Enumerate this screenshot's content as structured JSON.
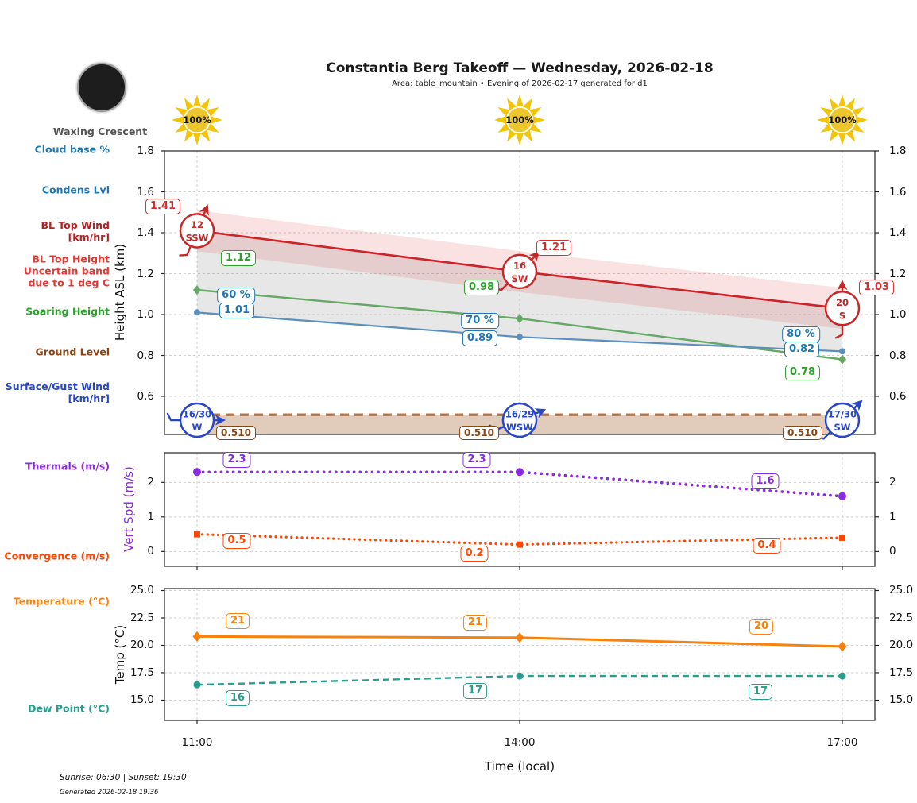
{
  "header": {
    "title": "Constantia Berg Takeoff — Wednesday, 2026-02-18",
    "subtitle": "Area: table_mountain • Evening of 2026-02-17 generated for d1"
  },
  "moon": {
    "label": "Waxing Crescent"
  },
  "sun": {
    "values": [
      "100%",
      "100%",
      "100%"
    ],
    "color": "#f2c50a"
  },
  "axis": {
    "xlabel": "Time (local)",
    "times": [
      "11:00",
      "14:00",
      "17:00"
    ]
  },
  "legend": [
    {
      "label": "Cloud base %",
      "color": "#1f77b4"
    },
    {
      "label": "Condens Lvl",
      "color": "#1f77b4"
    },
    {
      "label": "BL Top Wind\n[km/hr]",
      "color": "#b22222"
    },
    {
      "label": "BL Top Height\nUncertain band\ndue to 1 deg C",
      "color": "#e53935"
    },
    {
      "label": "Soaring Height",
      "color": "#2ca02c"
    },
    {
      "label": "Ground Level",
      "color": "#8b4513"
    },
    {
      "label": "Surface/Gust Wind\n[km/hr]",
      "color": "#2746c8"
    },
    {
      "label": "Thermals (m/s)",
      "color": "#8a2be2"
    },
    {
      "label": "Convergence (m/s)",
      "color": "#ff4500"
    },
    {
      "label": "Temperature (°C)",
      "color": "#f9820d"
    },
    {
      "label": "Dew Point (°C)",
      "color": "#2a9d8f"
    }
  ],
  "chart_data": [
    {
      "type": "line",
      "panel": "height",
      "ylabel": "Height ASL (km)",
      "ylim": [
        0.41,
        1.8
      ],
      "yticks": [
        "0.6",
        "0.8",
        "1.0",
        "1.2",
        "1.4",
        "1.6",
        "1.8"
      ],
      "x_categories": [
        "11:00",
        "14:00",
        "17:00"
      ],
      "series": [
        {
          "name": "BL Top Height (km)",
          "color": "#cf2128",
          "label_color": "#d32f2f",
          "values": [
            1.41,
            1.21,
            1.03
          ],
          "labels": [
            "1.41",
            "1.21",
            "1.03"
          ],
          "style": "solid",
          "uncertainty_band": 0.1
        },
        {
          "name": "Soaring Height (km)",
          "color": "#66a966",
          "label_color": "#2ca02c",
          "values": [
            1.12,
            0.98,
            0.78
          ],
          "labels": [
            "1.12",
            "0.98",
            "0.78"
          ],
          "style": "solid",
          "marker": "diamond"
        },
        {
          "name": "Condens Lvl (km)",
          "color": "#5b8fbe",
          "label_color": "#1f77b4",
          "values": [
            1.01,
            0.89,
            0.82
          ],
          "labels": [
            "1.01",
            "0.89",
            "0.82"
          ],
          "style": "solid",
          "marker": "circle"
        },
        {
          "name": "Cloud base %",
          "color": "#5b8fbe",
          "label_color": "#1f77b4",
          "labels": [
            "60 %",
            "70 %",
            "80 %"
          ]
        },
        {
          "name": "Ground Level (km)",
          "color": "#b07a50",
          "label_color": "#8b4513",
          "values": [
            0.51,
            0.51,
            0.51
          ],
          "labels": [
            "0.510",
            "0.510",
            "0.510"
          ],
          "style": "dashed",
          "fill_below": true
        }
      ],
      "wind_markers": {
        "bl_top": {
          "color": "#c62828",
          "items": [
            {
              "speed": "12",
              "dir": "SSW"
            },
            {
              "speed": "16",
              "dir": "SW"
            },
            {
              "speed": "20",
              "dir": "S"
            }
          ]
        },
        "surface": {
          "color": "#2746c8",
          "items": [
            {
              "speed": "16/30",
              "dir": "W"
            },
            {
              "speed": "16/29",
              "dir": "WSW"
            },
            {
              "speed": "17/30",
              "dir": "SW"
            }
          ]
        }
      }
    },
    {
      "type": "line",
      "panel": "vert_speed",
      "ylabel": "Vert Spd (m/s)",
      "ylabel_color": "#8a2be2",
      "ylim": [
        -0.43,
        2.86
      ],
      "yticks": [
        "0",
        "1",
        "2"
      ],
      "x_categories": [
        "11:00",
        "14:00",
        "17:00"
      ],
      "series": [
        {
          "name": "Thermals (m/s)",
          "color": "#8a2be2",
          "label_color": "#8a2be2",
          "values": [
            2.3,
            2.3,
            1.6
          ],
          "labels": [
            "2.3",
            "2.3",
            "1.6"
          ],
          "style": "dotted",
          "marker": "circle"
        },
        {
          "name": "Convergence (m/s)",
          "color": "#ff4500",
          "label_color": "#ff4500",
          "values": [
            0.5,
            0.2,
            0.4
          ],
          "labels": [
            "0.5",
            "0.2",
            "0.4"
          ],
          "style": "dotted",
          "marker": "square"
        }
      ]
    },
    {
      "type": "line",
      "panel": "temperature",
      "ylabel": "Temp (°C)",
      "ylim": [
        13.1,
        25.2
      ],
      "yticks": [
        "15.0",
        "17.5",
        "20.0",
        "22.5",
        "25.0"
      ],
      "x_categories": [
        "11:00",
        "14:00",
        "17:00"
      ],
      "series": [
        {
          "name": "Temperature (°C)",
          "color": "#f9820d",
          "label_color": "#f9820d",
          "values": [
            20.8,
            20.7,
            19.9
          ],
          "labels": [
            "21",
            "21",
            "20"
          ],
          "style": "solid",
          "marker": "diamond"
        },
        {
          "name": "Dew Point (°C)",
          "color": "#2a9d8f",
          "label_color": "#2a9d8f",
          "values": [
            16.4,
            17.2,
            17.2
          ],
          "labels": [
            "16",
            "17",
            "17"
          ],
          "style": "dashed",
          "marker": "circle"
        }
      ]
    }
  ],
  "footer": {
    "sun_times": "Sunrise: 06:30 | Sunset: 19:30",
    "generated": "Generated 2026-02-18 19:36"
  }
}
